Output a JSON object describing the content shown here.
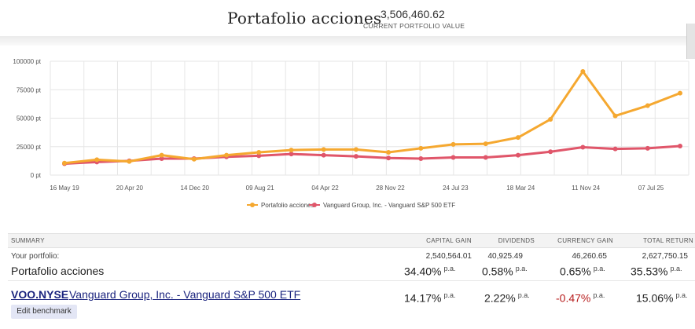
{
  "header": {
    "title": "Portafolio acciones",
    "value": "3,506,460.62",
    "value_label": "CURRENT PORTFOLIO VALUE"
  },
  "colors": {
    "portfolio": "#f5a830",
    "benchmark": "#e0566a",
    "grid": "#e6e6e6"
  },
  "chart_data": {
    "type": "line",
    "title": "",
    "xlabel": "",
    "ylabel": "",
    "ylim": [
      0,
      100000
    ],
    "y_ticks": [
      "0 pt",
      "25000 pt",
      "50000 pt",
      "75000 pt",
      "100000 pt"
    ],
    "x_ticks": [
      "16 May 19",
      "20 Apr 20",
      "14 Dec 20",
      "09 Aug 21",
      "04 Apr 22",
      "28 Nov 22",
      "24 Jul 23",
      "18 Mar 24",
      "11 Nov 24",
      "07 Jul 25"
    ],
    "series": [
      {
        "name": "Portafolio acciones",
        "values": [
          10500,
          13500,
          12000,
          17500,
          14000,
          17500,
          20000,
          22000,
          22500,
          22500,
          20000,
          23500,
          27000,
          27500,
          33000,
          49000,
          91000,
          52000,
          61000,
          72000
        ]
      },
      {
        "name": "Vanguard Group, Inc. - Vanguard S&P 500 ETF",
        "values": [
          10000,
          11500,
          12500,
          14500,
          14500,
          16000,
          17000,
          18500,
          17500,
          16500,
          15000,
          14500,
          15500,
          15500,
          17500,
          20500,
          24500,
          23000,
          23500,
          25500
        ]
      }
    ]
  },
  "summary": {
    "headers": {
      "summary": "SUMMARY",
      "capital_gain": "CAPITAL GAIN",
      "dividends": "DIVIDENDS",
      "currency_gain": "CURRENCY GAIN",
      "total_return": "TOTAL RETURN"
    },
    "portfolio": {
      "label_small": "Your portfolio:",
      "label": "Portafolio acciones",
      "capital_gain_amount": "2,540,564.01",
      "capital_gain_pct": "34.40%",
      "dividends_amount": "40,925.49",
      "dividends_pct": "0.58%",
      "currency_gain_amount": "46,260.65",
      "currency_gain_pct": "0.65%",
      "total_return_amount": "2,627,750.15",
      "total_return_pct": "35.53%"
    },
    "benchmark": {
      "ticker": "VOO.NYSE",
      "name": "Vanguard Group, Inc. - Vanguard S&P 500 ETF",
      "capital_gain_pct": "14.17%",
      "dividends_pct": "2.22%",
      "currency_gain_pct": "-0.47%",
      "total_return_pct": "15.06%",
      "edit_label": "Edit benchmark"
    },
    "pa": "p.a."
  }
}
